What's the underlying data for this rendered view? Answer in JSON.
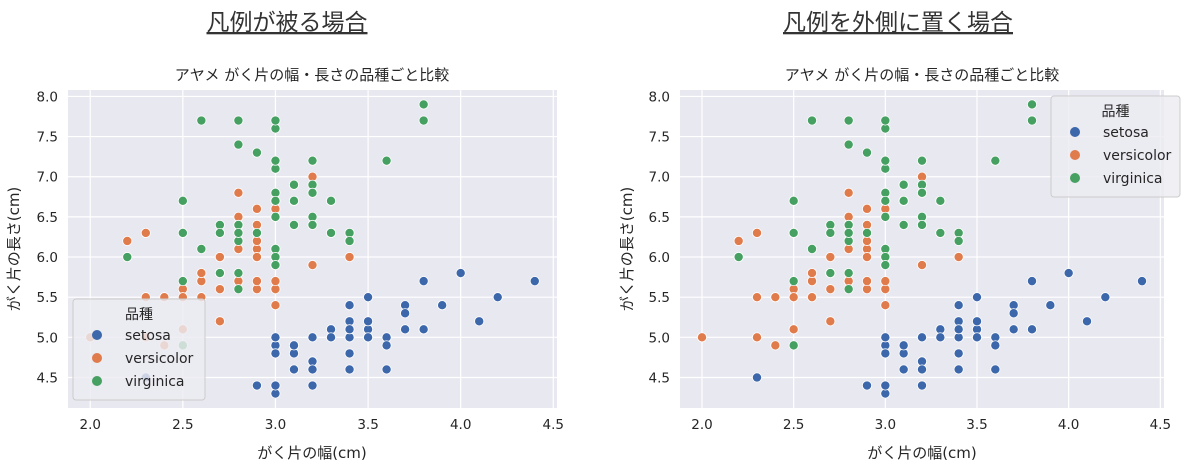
{
  "colors": {
    "setosa": "#3c67aa",
    "versicolor": "#e07b4c",
    "virginica": "#46a062",
    "background": "#e8e8f0",
    "grid": "#ffffff"
  },
  "chart_data": [
    {
      "type": "scatter",
      "heading": "凡例が被る場合",
      "title": "アヤメ がく片の幅・長さの品種ごと比較",
      "xlabel": "がく片の幅(cm)",
      "ylabel": "がく片の長さ(cm)",
      "xlim": [
        1.88,
        4.52
      ],
      "ylim": [
        4.12,
        8.08
      ],
      "xticks": [
        "2.0",
        "2.5",
        "3.0",
        "3.5",
        "4.0",
        "4.5"
      ],
      "yticks": [
        "4.5",
        "5.0",
        "5.5",
        "6.0",
        "6.5",
        "7.0",
        "7.5",
        "8.0"
      ],
      "grid": true,
      "legend": {
        "title": "品種",
        "placement": "lower-left",
        "entries": [
          "setosa",
          "versicolor",
          "virginica"
        ]
      }
    },
    {
      "type": "scatter",
      "heading": "凡例を外側に置く場合",
      "title": "アヤメ がく片の幅・長さの品種ごと比較",
      "xlabel": "がく片の幅(cm)",
      "ylabel": "がく片の長さ(cm)",
      "xlim": [
        1.88,
        4.52
      ],
      "ylim": [
        4.12,
        8.08
      ],
      "xticks": [
        "2.0",
        "2.5",
        "3.0",
        "3.5",
        "4.0",
        "4.5"
      ],
      "yticks": [
        "4.5",
        "5.0",
        "5.5",
        "6.0",
        "6.5",
        "7.0",
        "7.5",
        "8.0"
      ],
      "grid": true,
      "legend": {
        "title": "品種",
        "placement": "upper-right",
        "entries": [
          "setosa",
          "versicolor",
          "virginica"
        ]
      }
    }
  ],
  "series": [
    {
      "name": "setosa",
      "points": [
        [
          3.5,
          5.1
        ],
        [
          3.0,
          4.9
        ],
        [
          3.2,
          4.7
        ],
        [
          3.1,
          4.6
        ],
        [
          3.6,
          5.0
        ],
        [
          3.9,
          5.4
        ],
        [
          3.4,
          4.6
        ],
        [
          3.4,
          5.0
        ],
        [
          2.9,
          4.4
        ],
        [
          3.1,
          4.9
        ],
        [
          3.7,
          5.4
        ],
        [
          3.4,
          4.8
        ],
        [
          3.0,
          4.8
        ],
        [
          3.0,
          4.3
        ],
        [
          4.0,
          5.8
        ],
        [
          4.4,
          5.7
        ],
        [
          3.9,
          5.4
        ],
        [
          3.5,
          5.1
        ],
        [
          3.8,
          5.7
        ],
        [
          3.8,
          5.1
        ],
        [
          3.4,
          5.4
        ],
        [
          3.7,
          5.1
        ],
        [
          3.6,
          4.6
        ],
        [
          3.3,
          5.1
        ],
        [
          3.4,
          4.8
        ],
        [
          3.0,
          5.0
        ],
        [
          3.4,
          5.0
        ],
        [
          3.5,
          5.2
        ],
        [
          3.4,
          5.2
        ],
        [
          3.2,
          4.7
        ],
        [
          3.1,
          4.8
        ],
        [
          3.4,
          5.4
        ],
        [
          4.1,
          5.2
        ],
        [
          4.2,
          5.5
        ],
        [
          3.1,
          4.9
        ],
        [
          3.2,
          5.0
        ],
        [
          3.5,
          5.5
        ],
        [
          3.6,
          4.9
        ],
        [
          3.0,
          4.4
        ],
        [
          3.4,
          5.1
        ],
        [
          3.5,
          5.0
        ],
        [
          2.3,
          4.5
        ],
        [
          3.2,
          4.4
        ],
        [
          3.5,
          5.0
        ],
        [
          3.8,
          5.1
        ],
        [
          3.0,
          4.8
        ],
        [
          3.8,
          5.1
        ],
        [
          3.2,
          4.6
        ],
        [
          3.7,
          5.3
        ],
        [
          3.3,
          5.0
        ]
      ]
    },
    {
      "name": "versicolor",
      "points": [
        [
          3.2,
          7.0
        ],
        [
          3.2,
          6.4
        ],
        [
          3.1,
          6.9
        ],
        [
          2.3,
          5.5
        ],
        [
          2.8,
          6.5
        ],
        [
          2.8,
          5.7
        ],
        [
          3.3,
          6.3
        ],
        [
          2.4,
          4.9
        ],
        [
          2.9,
          6.6
        ],
        [
          2.7,
          5.2
        ],
        [
          2.0,
          5.0
        ],
        [
          3.0,
          5.9
        ],
        [
          2.2,
          6.0
        ],
        [
          2.9,
          6.1
        ],
        [
          2.9,
          5.6
        ],
        [
          3.1,
          6.7
        ],
        [
          3.0,
          5.6
        ],
        [
          2.7,
          5.8
        ],
        [
          2.2,
          6.2
        ],
        [
          2.5,
          5.6
        ],
        [
          3.2,
          5.9
        ],
        [
          2.8,
          6.1
        ],
        [
          2.5,
          6.3
        ],
        [
          2.8,
          6.1
        ],
        [
          2.9,
          6.4
        ],
        [
          3.0,
          6.6
        ],
        [
          2.8,
          6.8
        ],
        [
          3.0,
          6.7
        ],
        [
          2.9,
          6.0
        ],
        [
          2.6,
          5.7
        ],
        [
          2.4,
          5.5
        ],
        [
          2.4,
          5.5
        ],
        [
          2.7,
          5.8
        ],
        [
          2.7,
          6.0
        ],
        [
          3.0,
          5.4
        ],
        [
          3.4,
          6.0
        ],
        [
          3.1,
          6.7
        ],
        [
          2.3,
          6.3
        ],
        [
          3.0,
          5.6
        ],
        [
          2.5,
          5.5
        ],
        [
          2.6,
          5.5
        ],
        [
          3.0,
          6.1
        ],
        [
          2.6,
          5.8
        ],
        [
          2.3,
          5.0
        ],
        [
          2.7,
          5.6
        ],
        [
          3.0,
          5.7
        ],
        [
          2.9,
          5.7
        ],
        [
          2.9,
          6.2
        ],
        [
          2.5,
          5.1
        ],
        [
          2.8,
          5.7
        ]
      ]
    },
    {
      "name": "virginica",
      "points": [
        [
          3.3,
          6.3
        ],
        [
          2.7,
          5.8
        ],
        [
          3.0,
          7.1
        ],
        [
          2.9,
          6.3
        ],
        [
          3.0,
          6.5
        ],
        [
          3.0,
          7.6
        ],
        [
          2.5,
          4.9
        ],
        [
          2.9,
          7.3
        ],
        [
          2.5,
          6.7
        ],
        [
          3.6,
          7.2
        ],
        [
          3.2,
          6.5
        ],
        [
          2.7,
          6.4
        ],
        [
          3.0,
          6.8
        ],
        [
          2.5,
          5.7
        ],
        [
          2.8,
          5.8
        ],
        [
          3.2,
          6.4
        ],
        [
          3.0,
          6.5
        ],
        [
          3.8,
          7.7
        ],
        [
          2.6,
          7.7
        ],
        [
          2.2,
          6.0
        ],
        [
          3.2,
          6.9
        ],
        [
          2.8,
          5.6
        ],
        [
          2.8,
          7.7
        ],
        [
          2.7,
          6.3
        ],
        [
          3.3,
          6.7
        ],
        [
          3.2,
          7.2
        ],
        [
          2.8,
          6.2
        ],
        [
          3.0,
          6.1
        ],
        [
          2.8,
          6.4
        ],
        [
          3.0,
          7.2
        ],
        [
          2.8,
          7.4
        ],
        [
          3.8,
          7.9
        ],
        [
          2.8,
          6.4
        ],
        [
          2.8,
          6.3
        ],
        [
          2.6,
          6.1
        ],
        [
          3.0,
          7.7
        ],
        [
          3.4,
          6.3
        ],
        [
          3.1,
          6.4
        ],
        [
          3.0,
          6.0
        ],
        [
          3.1,
          6.9
        ],
        [
          3.1,
          6.7
        ],
        [
          3.1,
          6.9
        ],
        [
          2.7,
          5.8
        ],
        [
          3.2,
          6.8
        ],
        [
          3.3,
          6.7
        ],
        [
          3.0,
          6.7
        ],
        [
          2.5,
          6.3
        ],
        [
          3.0,
          6.5
        ],
        [
          3.4,
          6.2
        ],
        [
          3.0,
          5.9
        ]
      ]
    }
  ]
}
